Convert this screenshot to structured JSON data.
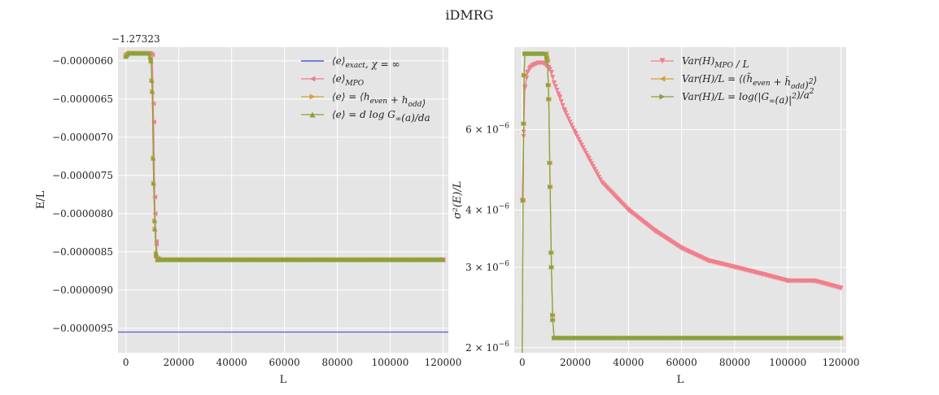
{
  "figure": {
    "title": "iDMRG"
  },
  "colors": {
    "background": "#e5e5e5",
    "grid": "#ffffff",
    "exact": "#3b3bc8",
    "mpo": "#f07f8e",
    "even_odd": "#d4a03a",
    "generating": "#8aa23c"
  },
  "chart_data": [
    {
      "type": "line",
      "subplot": "left",
      "title": "",
      "xlabel": "L",
      "ylabel": "E/L",
      "y_offset_label": "−1.27323",
      "xlim": [
        -3000,
        122000
      ],
      "ylim": [
        -9.82e-06,
        -5.82e-06
      ],
      "x_ticks": [
        0,
        20000,
        40000,
        60000,
        80000,
        100000,
        120000
      ],
      "x_tick_labels": [
        "0",
        "20000",
        "40000",
        "60000",
        "80000",
        "100000",
        "120000"
      ],
      "y_ticks": [
        -6e-06,
        -6.5e-06,
        -7e-06,
        -7.5e-06,
        -8e-06,
        -8.5e-06,
        -9e-06,
        -9.5e-06
      ],
      "y_tick_labels": [
        "−0.0000060",
        "−0.0000065",
        "−0.0000070",
        "−0.0000075",
        "−0.0000080",
        "−0.0000085",
        "−0.0000090",
        "−0.0000095"
      ],
      "grid": true,
      "legend_position": "top-right",
      "series": [
        {
          "name": "⟨e⟩exact, χ = ∞",
          "color_key": "exact",
          "marker": "none",
          "x": [
            -3000,
            122000
          ],
          "y": [
            -9.55e-06,
            -9.55e-06
          ]
        },
        {
          "name": "⟨e⟩MPO",
          "color_key": "mpo",
          "marker": "triangle-left",
          "x": [
            0,
            1000,
            3000,
            6000,
            9000,
            10000,
            10500,
            11000,
            11500,
            12000,
            13000,
            20000,
            60000,
            120000
          ],
          "y": [
            -5.9e-06,
            -5.9e-06,
            -5.9e-06,
            -5.9e-06,
            -5.9e-06,
            -5.92e-06,
            -6.8e-06,
            -8e-06,
            -8.4e-06,
            -8.58e-06,
            -8.6e-06,
            -8.6e-06,
            -8.6e-06,
            -8.6e-06
          ]
        },
        {
          "name": "⟨e⟩ = ⟨heven + hodd⟩",
          "color_key": "even_odd",
          "marker": "triangle-right",
          "x": [
            0,
            1000,
            3000,
            6000,
            9000,
            9500,
            10000,
            10500,
            11000,
            11500,
            12000,
            20000,
            60000,
            120000
          ],
          "y": [
            -5.94e-06,
            -5.9e-06,
            -5.9e-06,
            -5.9e-06,
            -5.9e-06,
            -6e-06,
            -6.4e-06,
            -7.6e-06,
            -8.2e-06,
            -8.55e-06,
            -8.6e-06,
            -8.6e-06,
            -8.6e-06,
            -8.6e-06
          ]
        },
        {
          "name": "⟨e⟩ = d log G∞(a)/da",
          "color_key": "generating",
          "marker": "triangle-up",
          "x": [
            0,
            1000,
            3000,
            6000,
            9000,
            9500,
            10000,
            10500,
            11000,
            11500,
            12000,
            20000,
            60000,
            120000
          ],
          "y": [
            -5.94e-06,
            -5.9e-06,
            -5.9e-06,
            -5.9e-06,
            -5.9e-06,
            -6e-06,
            -6.4e-06,
            -7.6e-06,
            -8.2e-06,
            -8.55e-06,
            -8.6e-06,
            -8.6e-06,
            -8.6e-06,
            -8.6e-06
          ]
        }
      ]
    },
    {
      "type": "line",
      "subplot": "right",
      "title": "",
      "xlabel": "L",
      "ylabel": "σ²(E)/L",
      "y_scale": "log",
      "xlim": [
        -3000,
        122000
      ],
      "ylim": [
        1.95e-06,
        9.1e-06
      ],
      "x_ticks": [
        0,
        20000,
        40000,
        60000,
        80000,
        100000,
        120000
      ],
      "x_tick_labels": [
        "0",
        "20000",
        "40000",
        "60000",
        "80000",
        "100000",
        "120000"
      ],
      "y_ticks": [
        2e-06,
        3e-06,
        4e-06,
        6e-06
      ],
      "y_tick_labels": [
        {
          "mantissa": "2 × 10",
          "exp": "−6"
        },
        {
          "mantissa": "3 × 10",
          "exp": "−6"
        },
        {
          "mantissa": "4 × 10",
          "exp": "−6"
        },
        {
          "mantissa": "6 × 10",
          "exp": "−6"
        }
      ],
      "grid": true,
      "legend_position": "top-right",
      "series": [
        {
          "name": "Var(H)MPO / L",
          "color_key": "mpo",
          "marker": "triangle-down",
          "x": [
            0,
            500,
            1000,
            2000,
            3000,
            4000,
            6000,
            8000,
            9000,
            10000,
            11000,
            12000,
            14000,
            16000,
            20000,
            25000,
            30000,
            40000,
            50000,
            60000,
            70000,
            80000,
            90000,
            100000,
            110000,
            120000
          ],
          "y": [
            4.2e-06,
            5.8e-06,
            7.4e-06,
            8e-06,
            8.2e-06,
            8.3e-06,
            8.4e-06,
            8.4e-06,
            8.3e-06,
            8.2e-06,
            8e-06,
            7.6e-06,
            7.1e-06,
            6.6e-06,
            5.9e-06,
            5.2e-06,
            4.6e-06,
            4e-06,
            3.6e-06,
            3.3e-06,
            3.1e-06,
            3e-06,
            2.9e-06,
            2.8e-06,
            2.8e-06,
            2.7e-06
          ]
        },
        {
          "name": "Var(H)/L = ⟨(h̃even + h̃odd)²⟩",
          "color_key": "even_odd",
          "marker": "triangle-left",
          "x": [
            0,
            300,
            700,
            1000,
            2000,
            5000,
            9000,
            9500,
            10000,
            10500,
            11000,
            11500,
            12000,
            20000,
            60000,
            120000
          ],
          "y": [
            1.9e-06,
            4.2e-06,
            7.9e-06,
            8.8e-06,
            8.8e-06,
            8.8e-06,
            8.8e-06,
            8.5e-06,
            7e-06,
            4.5e-06,
            3e-06,
            2.3e-06,
            2.1e-06,
            2.1e-06,
            2.1e-06,
            2.1e-06
          ]
        },
        {
          "name": "Var(H)/L = log(|G∞(a)|²)/a²",
          "color_key": "generating",
          "marker": "triangle-right",
          "x": [
            0,
            300,
            700,
            1000,
            2000,
            5000,
            9000,
            9500,
            10000,
            10500,
            11000,
            11500,
            12000,
            20000,
            60000,
            120000
          ],
          "y": [
            1.9e-06,
            4.2e-06,
            7.9e-06,
            8.8e-06,
            8.8e-06,
            8.8e-06,
            8.8e-06,
            8.5e-06,
            7e-06,
            4.5e-06,
            3e-06,
            2.3e-06,
            2.1e-06,
            2.1e-06,
            2.1e-06,
            2.1e-06
          ]
        }
      ]
    }
  ]
}
